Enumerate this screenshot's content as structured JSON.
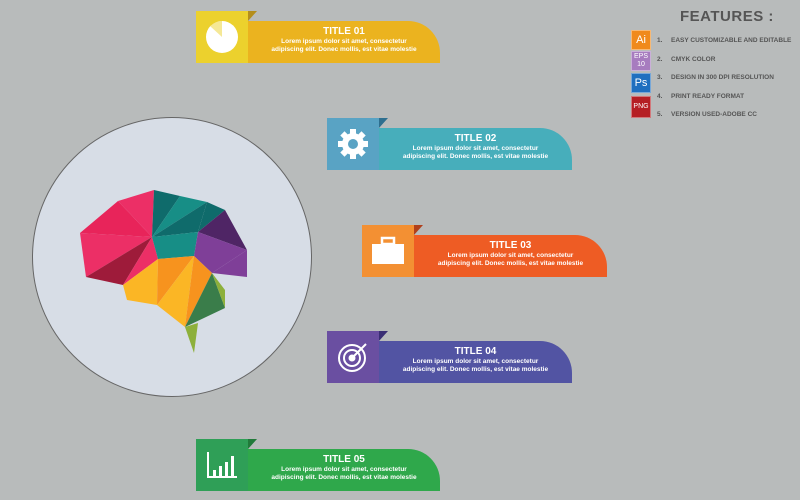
{
  "cards": [
    {
      "title": "TITLE 01",
      "line1": "Lorem ipsum dolor sit amet, consectetur",
      "line2": "adipiscing elit. Donec mollis, est vitae molestie",
      "icon": "pie-chart-icon",
      "box": "#ecd12d",
      "bar": "#ebb31f",
      "fold": "#b48e1c"
    },
    {
      "title": "TITLE 02",
      "line1": "Lorem ipsum dolor sit amet, consectetur",
      "line2": "adipiscing elit. Donec mollis, est vitae molestie",
      "icon": "gear-icon",
      "box": "#59a3c4",
      "bar": "#47aebb",
      "fold": "#2e6f8f"
    },
    {
      "title": "TITLE 03",
      "line1": "Lorem ipsum dolor sit amet, consectetur",
      "line2": "adipiscing elit. Donec mollis, est vitae molestie",
      "icon": "briefcase-icon",
      "box": "#f39033",
      "bar": "#ee5c24",
      "fold": "#b0401c"
    },
    {
      "title": "TITLE 04",
      "line1": "Lorem ipsum dolor sit amet, consectetur",
      "line2": "adipiscing elit. Donec mollis, est vitae molestie",
      "icon": "target-icon",
      "box": "#6a4fa1",
      "bar": "#5254a3",
      "fold": "#3a2e74"
    },
    {
      "title": "TITLE 05",
      "line1": "Lorem ipsum dolor sit amet, consectetur",
      "line2": "adipiscing elit. Donec mollis, est vitae molestie",
      "icon": "bar-chart-icon",
      "box": "#2f9f57",
      "bar": "#2fa84b",
      "fold": "#217a3a"
    }
  ],
  "features": {
    "title": "FEATURES :",
    "items": [
      {
        "num": "1.",
        "text": "EASY CUSTOMIZABLE AND EDITABLE",
        "badge": "Ai",
        "color": "#f08a1c"
      },
      {
        "num": "2.",
        "text": "CMYK COLOR",
        "badge": "EPS 10",
        "color": "#a77cbf"
      },
      {
        "num": "3.",
        "text": "DESIGN IN 300 DPI RESOLUTION",
        "badge": "Ps",
        "color": "#1f6fbf"
      },
      {
        "num": "4.",
        "text": "PRINT READY FORMAT",
        "badge": "",
        "color": "#b51f24"
      },
      {
        "num": "5.",
        "text": "VERSION USED-ADOBE CC",
        "badge": "PNG",
        "color": "#b51f24"
      }
    ]
  }
}
